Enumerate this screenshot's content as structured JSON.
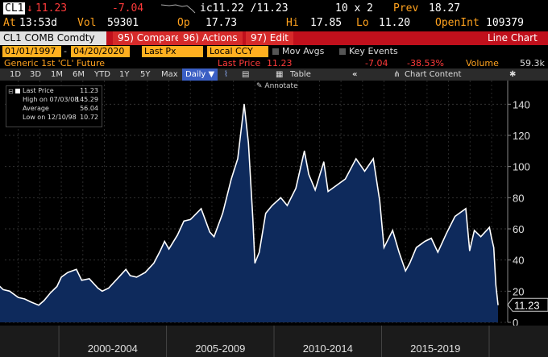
{
  "quote": {
    "ticker": "CL1",
    "arrow": "↓",
    "last": "11.23",
    "change": "-7.04",
    "spark_label": "ic11.22 /11.23",
    "size": "10 x 2",
    "prev_label": "Prev",
    "prev": "18.27",
    "time_label": "At",
    "time": "13:53d",
    "vol_label": "Vol",
    "vol": "59301",
    "open_label": "Op",
    "open": "17.73",
    "high_label": "Hi",
    "high": "17.85",
    "low_label": "Lo",
    "low": "11.20",
    "oi_label": "OpenInt",
    "oi": "109379"
  },
  "command": {
    "security": "CL1 COMB Comdty",
    "compare": "95) Compare",
    "actions": "96) Actions",
    "edit": "97) Edit",
    "mode": "Line Chart"
  },
  "dates": {
    "start": "01/01/1997",
    "end": "04/20/2020",
    "field": "Last Px",
    "currency": "Local CCY",
    "mov_avgs": "Mov Avgs",
    "key_events": "Key Events"
  },
  "info": {
    "name": "Generic 1st 'CL' Future",
    "last_label": "Last Price",
    "last": "11.23",
    "chg": "-7.04",
    "pct": "-38.53%",
    "vol_label": "Volume",
    "vol": "59.3k"
  },
  "toolbar": {
    "periods": [
      "1D",
      "3D",
      "1M",
      "6M",
      "YTD",
      "1Y",
      "5Y",
      "Max"
    ],
    "freq": "Daily",
    "table": "Table",
    "content": "Chart Content",
    "annotate": "Annotate"
  },
  "legend": {
    "last_label": "Last Price",
    "last": "11.23",
    "high_label": "High on 07/03/08",
    "high": "145.29",
    "avg_label": "Average",
    "avg": "56.04",
    "low_label": "Low on 12/10/98",
    "low": "10.72"
  },
  "colors": {
    "line": "#ffffff",
    "area": "#0e2a5c",
    "accent": "#ffa21e",
    "red": "#ff3a3a"
  },
  "chart_data": {
    "type": "area",
    "title": "",
    "xlabel": "",
    "ylabel": "",
    "ylim": [
      0,
      150
    ],
    "xlim": [
      1997.0,
      2020.3
    ],
    "y_ticks": [
      0,
      20,
      40,
      60,
      80,
      100,
      120,
      140
    ],
    "x_tick_labels": [
      "2000-2004",
      "2005-2009",
      "2010-2014",
      "2015-2019"
    ],
    "last_value_tag": "11.23",
    "grid": true,
    "series": [
      {
        "x": [
          1997.0,
          1997.3,
          1997.6,
          1998.0,
          1998.3,
          1998.6,
          1998.95,
          1999.2,
          1999.5,
          1999.8,
          2000.0,
          2000.3,
          2000.7,
          2000.95,
          2001.3,
          2001.7,
          2001.9,
          2002.2,
          2002.6,
          2003.0,
          2003.2,
          2003.5,
          2003.9,
          2004.3,
          2004.6,
          2004.8,
          2005.0,
          2005.4,
          2005.7,
          2006.0,
          2006.5,
          2006.9,
          2007.1,
          2007.5,
          2007.9,
          2008.2,
          2008.5,
          2008.7,
          2008.9,
          2009.0,
          2009.2,
          2009.5,
          2009.8,
          2010.2,
          2010.5,
          2010.9,
          2011.3,
          2011.5,
          2011.8,
          2012.2,
          2012.4,
          2012.8,
          2013.2,
          2013.7,
          2014.1,
          2014.5,
          2014.8,
          2015.0,
          2015.4,
          2015.7,
          2016.0,
          2016.2,
          2016.5,
          2016.9,
          2017.2,
          2017.5,
          2017.9,
          2018.3,
          2018.8,
          2018.98,
          2019.2,
          2019.5,
          2019.9,
          2020.0,
          2020.1,
          2020.2,
          2020.3
        ],
        "y": [
          25,
          21,
          20,
          16,
          15,
          13,
          11,
          14,
          19,
          23,
          29,
          32,
          34,
          27,
          28,
          22,
          20,
          22,
          28,
          34,
          30,
          29,
          32,
          38,
          46,
          52,
          47,
          56,
          65,
          66,
          73,
          58,
          55,
          70,
          92,
          105,
          140,
          115,
          67,
          38,
          45,
          70,
          75,
          80,
          75,
          86,
          110,
          95,
          85,
          103,
          84,
          88,
          92,
          105,
          97,
          105,
          78,
          48,
          59,
          45,
          33,
          38,
          48,
          52,
          54,
          45,
          57,
          68,
          73,
          46,
          59,
          55,
          61,
          54,
          48,
          24,
          11.23
        ]
      }
    ]
  }
}
